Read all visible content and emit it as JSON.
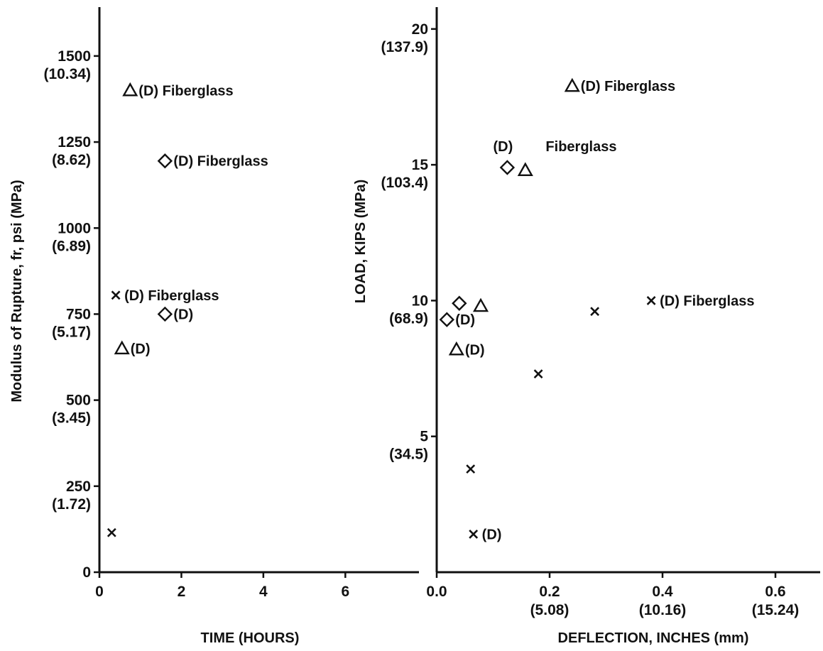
{
  "chart_data": [
    {
      "type": "scatter",
      "xlabel": "TIME (HOURS)",
      "ylabel": "Modulus of Rupture, fr, psi (MPa)",
      "xlim": [
        0,
        8.2
      ],
      "ylim": [
        0,
        1600
      ],
      "xticks": [
        {
          "value": 0,
          "label": "0"
        },
        {
          "value": 2,
          "label": "2"
        },
        {
          "value": 4,
          "label": "4"
        },
        {
          "value": 6,
          "label": "6"
        }
      ],
      "yticks": [
        {
          "value": 0,
          "label": "0",
          "sub": ""
        },
        {
          "value": 250,
          "label": "250",
          "sub": "(1.72)"
        },
        {
          "value": 500,
          "label": "500",
          "sub": "(3.45)"
        },
        {
          "value": 750,
          "label": "750",
          "sub": "(5.17)"
        },
        {
          "value": 1000,
          "label": "1000",
          "sub": "(6.89)"
        },
        {
          "value": 1250,
          "label": "1250",
          "sub": "(8.62)"
        },
        {
          "value": 1500,
          "label": "1500",
          "sub": "(10.34)"
        }
      ],
      "points": [
        {
          "marker": "triangle",
          "x": 0.75,
          "y": 1400,
          "label": "(D) Fiberglass"
        },
        {
          "marker": "diamond",
          "x": 1.6,
          "y": 1195,
          "label": "(D) Fiberglass"
        },
        {
          "marker": "x",
          "x": 0.4,
          "y": 805,
          "label": "(D) Fiberglass"
        },
        {
          "marker": "diamond",
          "x": 1.6,
          "y": 750,
          "label": "(D)"
        },
        {
          "marker": "triangle",
          "x": 0.55,
          "y": 650,
          "label": "(D)"
        },
        {
          "marker": "x",
          "x": 0.3,
          "y": 115,
          "label": ""
        }
      ]
    },
    {
      "type": "scatter",
      "xlabel": "DEFLECTION, INCHES (mm)",
      "ylabel": "LOAD, KIPS (MPa)",
      "xlim": [
        0,
        0.7
      ],
      "ylim": [
        0,
        20.5
      ],
      "xticks": [
        {
          "value": 0.0,
          "label": "0.0",
          "sub": ""
        },
        {
          "value": 0.2,
          "label": "0.2",
          "sub": "(5.08)"
        },
        {
          "value": 0.4,
          "label": "0.4",
          "sub": "(10.16)"
        },
        {
          "value": 0.6,
          "label": "0.6",
          "sub": "(15.24)"
        }
      ],
      "yticks": [
        {
          "value": 5,
          "label": "5",
          "sub": "(34.5)"
        },
        {
          "value": 10,
          "label": "10",
          "sub": "(68.9)"
        },
        {
          "value": 15,
          "label": "15",
          "sub": "(103.4)"
        },
        {
          "value": 20,
          "label": "20",
          "sub": "(137.9)"
        }
      ],
      "points": [
        {
          "marker": "triangle",
          "x": 0.24,
          "y": 17.9,
          "label": "(D) Fiberglass"
        },
        {
          "marker": "diamond",
          "x": 0.125,
          "y": 14.9,
          "label": ""
        },
        {
          "marker": "triangle",
          "x": 0.157,
          "y": 14.8,
          "label": ""
        },
        {
          "marker": "diamond",
          "x": 0.04,
          "y": 9.9,
          "label": ""
        },
        {
          "marker": "triangle",
          "x": 0.078,
          "y": 9.8,
          "label": ""
        },
        {
          "marker": "diamond",
          "x": 0.018,
          "y": 9.3,
          "label": "(D)"
        },
        {
          "marker": "x",
          "x": 0.28,
          "y": 9.6,
          "label": ""
        },
        {
          "marker": "x",
          "x": 0.38,
          "y": 10.0,
          "label": "(D) Fiberglass"
        },
        {
          "marker": "triangle",
          "x": 0.035,
          "y": 8.2,
          "label": "(D)"
        },
        {
          "marker": "x",
          "x": 0.18,
          "y": 7.3,
          "label": ""
        },
        {
          "marker": "x",
          "x": 0.06,
          "y": 3.8,
          "label": ""
        },
        {
          "marker": "x",
          "x": 0.065,
          "y": 1.4,
          "label": "(D)"
        }
      ],
      "free_labels": [
        {
          "x": 0.1,
          "y": 15.5,
          "text": "(D)"
        },
        {
          "x": 0.193,
          "y": 15.5,
          "text": "Fiberglass"
        }
      ]
    }
  ]
}
